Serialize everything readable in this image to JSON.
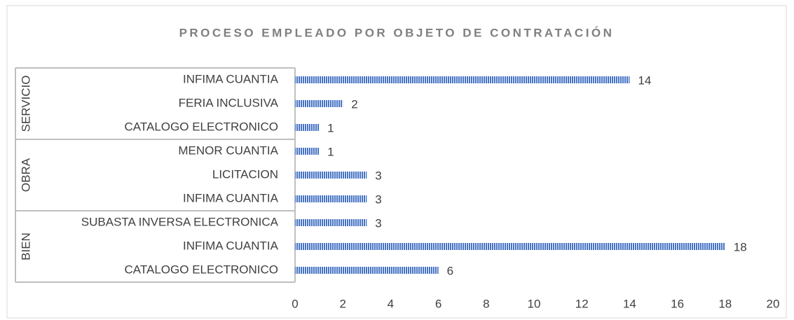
{
  "chart_data": {
    "type": "bar",
    "title": "PROCESO EMPLEADO POR OBJETO DE CONTRATACIÓN",
    "groups": [
      {
        "name": "SERVICIO",
        "categories": [
          "INFIMA CUANTIA",
          "FERIA INCLUSIVA",
          "CATALOGO ELECTRONICO"
        ],
        "values": [
          14,
          2,
          1
        ]
      },
      {
        "name": "OBRA",
        "categories": [
          "MENOR CUANTIA",
          "LICITACION",
          "INFIMA CUANTIA"
        ],
        "values": [
          1,
          3,
          3
        ]
      },
      {
        "name": "BIEN",
        "categories": [
          "SUBASTA INVERSA ELECTRONICA",
          "INFIMA CUANTIA",
          "CATALOGO ELECTRONICO"
        ],
        "values": [
          3,
          18,
          6
        ]
      }
    ],
    "color": "#4472c4",
    "xlim": [
      0,
      20
    ],
    "xticks": [
      0,
      2,
      4,
      6,
      8,
      10,
      12,
      14,
      16,
      18,
      20
    ]
  }
}
